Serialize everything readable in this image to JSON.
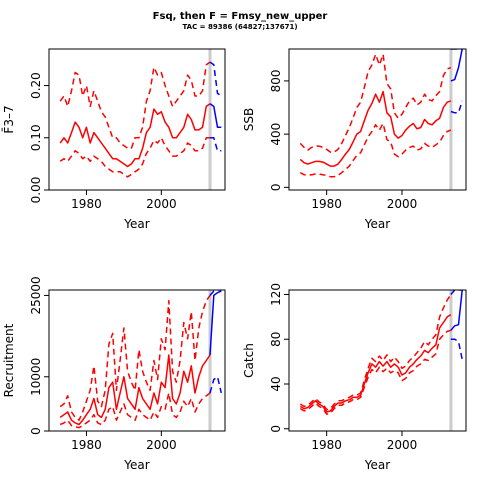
{
  "title": "Fsq, then F = Fmsy_new_upper",
  "subtitle": "TAC = 89386 (64827;137671)",
  "colors": {
    "history": "#ff0000",
    "projection": "#0000ff",
    "marker": "#cccccc",
    "axis": "#000000"
  },
  "chart_data": [
    {
      "type": "line",
      "xlabel": "Year",
      "ylabel": "F̄3–7",
      "xlim": [
        1970,
        2017
      ],
      "ylim": [
        0,
        0.27
      ],
      "xticks": [
        1980,
        2000
      ],
      "yticks": [
        0.0,
        0.1,
        0.2
      ],
      "ytick_labels": [
        "0.00",
        "0.10",
        "0.20"
      ],
      "marker_year": 2013,
      "x": [
        1973,
        1974,
        1975,
        1976,
        1977,
        1978,
        1979,
        1980,
        1981,
        1982,
        1983,
        1984,
        1985,
        1986,
        1987,
        1988,
        1989,
        1990,
        1991,
        1992,
        1993,
        1994,
        1995,
        1996,
        1997,
        1998,
        1999,
        2000,
        2001,
        2002,
        2003,
        2004,
        2005,
        2006,
        2007,
        2008,
        2009,
        2010,
        2011,
        2012,
        2013
      ],
      "series": [
        {
          "role": "estimate",
          "values": [
            0.09,
            0.1,
            0.09,
            0.11,
            0.13,
            0.12,
            0.1,
            0.12,
            0.09,
            0.11,
            0.1,
            0.09,
            0.08,
            0.07,
            0.06,
            0.06,
            0.055,
            0.05,
            0.045,
            0.05,
            0.06,
            0.06,
            0.08,
            0.11,
            0.12,
            0.155,
            0.145,
            0.15,
            0.13,
            0.12,
            0.1,
            0.1,
            0.11,
            0.12,
            0.145,
            0.135,
            0.115,
            0.115,
            0.12,
            0.16,
            0.165
          ]
        },
        {
          "role": "upper",
          "values": [
            0.17,
            0.18,
            0.16,
            0.19,
            0.225,
            0.22,
            0.18,
            0.2,
            0.16,
            0.19,
            0.17,
            0.15,
            0.14,
            0.12,
            0.1,
            0.1,
            0.09,
            0.085,
            0.08,
            0.08,
            0.1,
            0.1,
            0.12,
            0.17,
            0.19,
            0.235,
            0.22,
            0.225,
            0.2,
            0.18,
            0.16,
            0.17,
            0.18,
            0.19,
            0.22,
            0.21,
            0.18,
            0.18,
            0.19,
            0.24,
            0.245
          ]
        },
        {
          "role": "lower",
          "values": [
            0.055,
            0.06,
            0.055,
            0.065,
            0.075,
            0.07,
            0.06,
            0.065,
            0.055,
            0.065,
            0.06,
            0.055,
            0.045,
            0.04,
            0.035,
            0.035,
            0.035,
            0.03,
            0.025,
            0.03,
            0.035,
            0.04,
            0.05,
            0.07,
            0.08,
            0.095,
            0.09,
            0.1,
            0.085,
            0.075,
            0.065,
            0.065,
            0.07,
            0.075,
            0.09,
            0.085,
            0.075,
            0.075,
            0.08,
            0.1,
            0.1
          ]
        }
      ],
      "projection": {
        "x": [
          2013,
          2014,
          2015,
          2016
        ],
        "estimate": [
          0.165,
          0.16,
          0.12,
          0.12
        ],
        "upper": [
          0.245,
          0.24,
          0.185,
          0.18
        ],
        "lower": [
          0.1,
          0.1,
          0.075,
          0.075
        ]
      }
    },
    {
      "type": "line",
      "xlabel": "Year",
      "ylabel": "SSB",
      "xlim": [
        1970,
        2017
      ],
      "ylim": [
        -20,
        1040
      ],
      "xticks": [
        1980,
        2000
      ],
      "yticks": [
        0,
        400,
        800
      ],
      "ytick_labels": [
        "0",
        "400",
        "800"
      ],
      "marker_year": 2013,
      "x": [
        1973,
        1974,
        1975,
        1976,
        1977,
        1978,
        1979,
        1980,
        1981,
        1982,
        1983,
        1984,
        1985,
        1986,
        1987,
        1988,
        1989,
        1990,
        1991,
        1992,
        1993,
        1994,
        1995,
        1996,
        1997,
        1998,
        1999,
        2000,
        2001,
        2002,
        2003,
        2004,
        2005,
        2006,
        2007,
        2008,
        2009,
        2010,
        2011,
        2012,
        2013
      ],
      "series": [
        {
          "role": "estimate",
          "values": [
            210,
            185,
            175,
            185,
            195,
            195,
            190,
            175,
            160,
            160,
            175,
            210,
            250,
            285,
            340,
            400,
            420,
            500,
            580,
            630,
            700,
            640,
            720,
            560,
            530,
            400,
            370,
            390,
            430,
            460,
            480,
            440,
            450,
            510,
            480,
            470,
            500,
            520,
            600,
            640,
            650
          ]
        },
        {
          "role": "upper",
          "values": [
            330,
            300,
            280,
            300,
            310,
            310,
            300,
            285,
            265,
            265,
            285,
            330,
            390,
            450,
            520,
            600,
            640,
            750,
            870,
            920,
            1000,
            920,
            1000,
            780,
            740,
            560,
            520,
            550,
            600,
            650,
            670,
            620,
            640,
            700,
            660,
            650,
            690,
            720,
            840,
            890,
            900
          ]
        },
        {
          "role": "lower",
          "values": [
            110,
            95,
            90,
            95,
            100,
            100,
            95,
            90,
            80,
            80,
            90,
            110,
            135,
            160,
            200,
            240,
            260,
            320,
            380,
            420,
            470,
            430,
            480,
            360,
            340,
            250,
            230,
            250,
            280,
            300,
            310,
            280,
            290,
            330,
            310,
            300,
            320,
            340,
            390,
            420,
            430
          ]
        }
      ],
      "projection": {
        "x": [
          2013,
          2014,
          2015,
          2016
        ],
        "estimate": [
          800,
          810,
          900,
          1040
        ],
        "upper": [
          1040,
          1040,
          1040,
          1040
        ],
        "lower": [
          570,
          560,
          560,
          650
        ]
      }
    },
    {
      "type": "line",
      "xlabel": "Year",
      "ylabel": "Recruitment",
      "xlim": [
        1970,
        2017
      ],
      "ylim": [
        0,
        26000
      ],
      "xticks": [
        1980,
        2000
      ],
      "yticks": [
        0,
        10000,
        25000
      ],
      "ytick_labels": [
        "0",
        "10000",
        "25000"
      ],
      "marker_year": 2013,
      "x": [
        1973,
        1974,
        1975,
        1976,
        1977,
        1978,
        1979,
        1980,
        1981,
        1982,
        1983,
        1984,
        1985,
        1986,
        1987,
        1988,
        1989,
        1990,
        1991,
        1992,
        1993,
        1994,
        1995,
        1996,
        1997,
        1998,
        1999,
        2000,
        2001,
        2002,
        2003,
        2004,
        2005,
        2006,
        2007,
        2008,
        2009,
        2010,
        2011,
        2012,
        2013
      ],
      "series": [
        {
          "role": "estimate",
          "values": [
            2500,
            3000,
            3500,
            2000,
            1500,
            1200,
            2000,
            3000,
            4000,
            6000,
            3000,
            2500,
            4000,
            8000,
            9000,
            4000,
            7000,
            10000,
            6000,
            5000,
            4000,
            8000,
            6000,
            5000,
            4000,
            7000,
            5000,
            9000,
            8000,
            14000,
            6000,
            5000,
            7000,
            11000,
            9000,
            12000,
            7000,
            10000,
            12000,
            13000,
            14000
          ]
        },
        {
          "role": "upper",
          "values": [
            4500,
            5000,
            6500,
            3500,
            2500,
            2000,
            3500,
            5500,
            7500,
            12000,
            5500,
            4500,
            7500,
            16000,
            18000,
            7500,
            13000,
            19000,
            11000,
            9000,
            7500,
            15000,
            11000,
            9000,
            7500,
            13000,
            9500,
            17000,
            15000,
            24000,
            11000,
            9000,
            13000,
            20000,
            17000,
            22000,
            13000,
            19000,
            22000,
            24000,
            25000
          ]
        },
        {
          "role": "lower",
          "values": [
            1200,
            1500,
            2000,
            1000,
            800,
            600,
            1000,
            1500,
            2000,
            3000,
            1500,
            1200,
            2000,
            4000,
            4500,
            2000,
            3500,
            5000,
            3000,
            2500,
            2000,
            4000,
            3000,
            2500,
            2000,
            3500,
            2500,
            4500,
            4000,
            7000,
            3000,
            2500,
            3500,
            5500,
            4500,
            6000,
            3500,
            5000,
            6000,
            6500,
            7000
          ]
        }
      ],
      "projection": {
        "x": [
          2013,
          2014,
          2015,
          2016
        ],
        "estimate": [
          14000,
          25000,
          25500,
          25800
        ],
        "upper": [
          25000,
          25800,
          26000,
          26000
        ],
        "lower": [
          7000,
          9500,
          10000,
          7000
        ]
      }
    },
    {
      "type": "line",
      "xlabel": "Year",
      "ylabel": "Catch",
      "xlim": [
        1970,
        2017
      ],
      "ylim": [
        -2,
        124
      ],
      "xticks": [
        1980,
        2000
      ],
      "yticks": [
        0,
        40,
        80,
        120
      ],
      "ytick_labels": [
        "0",
        "40",
        "80",
        "120"
      ],
      "marker_year": 2013,
      "x": [
        1973,
        1974,
        1975,
        1976,
        1977,
        1978,
        1979,
        1980,
        1981,
        1982,
        1983,
        1984,
        1985,
        1986,
        1987,
        1988,
        1989,
        1990,
        1991,
        1992,
        1993,
        1994,
        1995,
        1996,
        1997,
        1998,
        1999,
        2000,
        2001,
        2002,
        2003,
        2004,
        2005,
        2006,
        2007,
        2008,
        2009,
        2010,
        2011,
        2012,
        2013
      ],
      "series": [
        {
          "role": "estimate",
          "values": [
            20,
            18,
            19,
            22,
            25,
            22,
            20,
            15,
            16,
            20,
            23,
            23,
            25,
            26,
            28,
            28,
            30,
            40,
            50,
            58,
            55,
            60,
            56,
            60,
            55,
            58,
            55,
            48,
            50,
            55,
            58,
            62,
            65,
            70,
            68,
            72,
            75,
            90,
            95,
            100,
            102
          ]
        },
        {
          "role": "upper",
          "values": [
            22,
            20,
            21,
            24,
            27,
            24,
            22,
            17,
            18,
            22,
            25,
            25,
            27,
            28,
            30,
            30,
            32,
            43,
            54,
            63,
            60,
            65,
            61,
            66,
            60,
            64,
            60,
            54,
            56,
            61,
            64,
            68,
            72,
            78,
            75,
            80,
            84,
            100,
            108,
            115,
            120
          ]
        },
        {
          "role": "lower",
          "values": [
            18,
            16,
            17,
            20,
            23,
            20,
            18,
            13,
            14,
            18,
            21,
            21,
            23,
            24,
            26,
            26,
            28,
            37,
            46,
            53,
            50,
            55,
            51,
            54,
            50,
            52,
            50,
            43,
            45,
            50,
            52,
            56,
            58,
            62,
            61,
            64,
            67,
            80,
            84,
            87,
            88
          ]
        }
      ],
      "projection": {
        "x": [
          2013,
          2014,
          2015,
          2016
        ],
        "estimate": [
          88,
          92,
          93,
          124
        ],
        "upper": [
          120,
          124,
          124,
          124
        ],
        "lower": [
          80,
          80,
          78,
          62
        ]
      }
    }
  ]
}
